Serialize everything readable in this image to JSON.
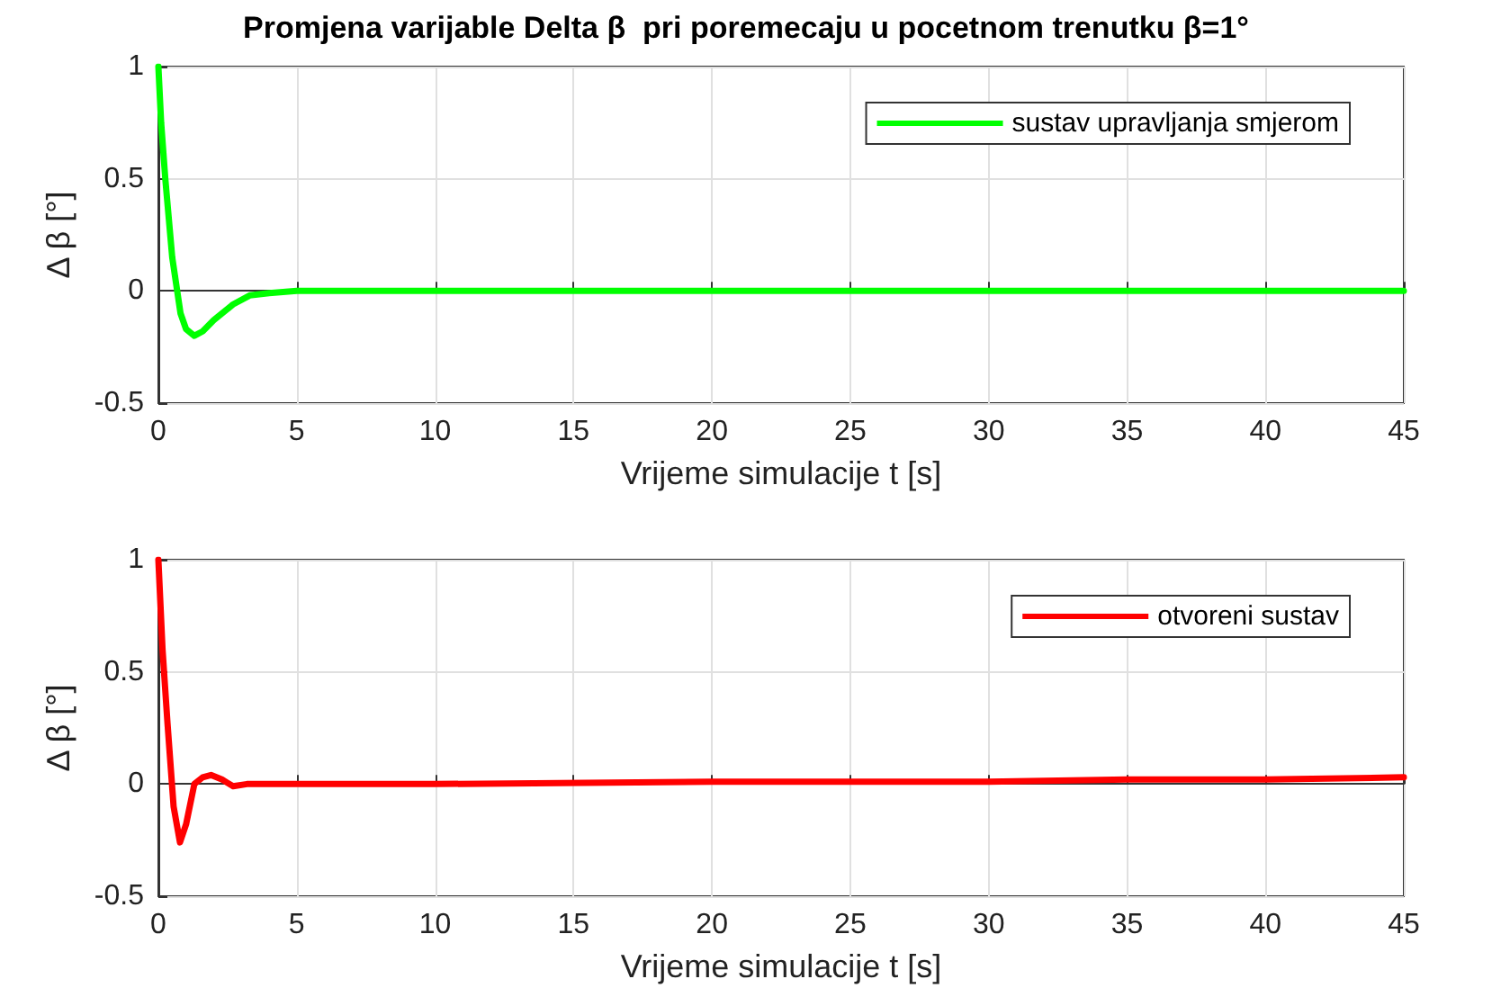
{
  "chart_data": [
    {
      "type": "line",
      "title": "Promjena varijable Delta β  pri poremecaju u pocetnom trenutku β=1°",
      "xlabel": "Vrijeme simulacije t [s]",
      "ylabel": "Δ β [°]",
      "x": [
        0,
        0.1,
        0.25,
        0.5,
        0.8,
        1.0,
        1.3,
        1.6,
        2.0,
        2.7,
        3.3,
        4.0,
        5,
        10,
        20,
        30,
        45
      ],
      "series": [
        {
          "name": "sustav upravljanja smjerom",
          "color": "#00ff00",
          "values": [
            1,
            0.75,
            0.5,
            0.15,
            -0.1,
            -0.17,
            -0.2,
            -0.18,
            -0.13,
            -0.06,
            -0.02,
            -0.01,
            0,
            0,
            0,
            0,
            0
          ]
        }
      ],
      "xlim": [
        0,
        45
      ],
      "xticks": [
        0,
        5,
        10,
        15,
        20,
        25,
        30,
        35,
        40,
        45
      ],
      "ylim": [
        -0.5,
        1
      ],
      "yticks": [
        -0.5,
        0,
        0.5,
        1
      ],
      "grid": true,
      "legend": "top right",
      "marker": "none",
      "line_style": "solid"
    },
    {
      "type": "line",
      "xlabel": "Vrijeme simulacije t [s]",
      "ylabel": "Δ β [°]",
      "x": [
        0,
        0.15,
        0.33,
        0.55,
        0.78,
        1.0,
        1.3,
        1.6,
        1.9,
        2.3,
        2.7,
        3.2,
        5,
        10,
        20,
        25,
        30,
        35,
        40,
        45
      ],
      "series": [
        {
          "name": "otvoreni sustav",
          "color": "#ff0000",
          "values": [
            1,
            0.6,
            0.27,
            -0.1,
            -0.26,
            -0.18,
            0,
            0.03,
            0.04,
            0.02,
            -0.01,
            0,
            0,
            0,
            0.01,
            0.01,
            0.01,
            0.02,
            0.02,
            0.03
          ]
        }
      ],
      "xlim": [
        0,
        45
      ],
      "xticks": [
        0,
        5,
        10,
        15,
        20,
        25,
        30,
        35,
        40,
        45
      ],
      "ylim": [
        -0.5,
        1
      ],
      "yticks": [
        -0.5,
        0,
        0.5,
        1
      ],
      "grid": true,
      "legend": "top right",
      "marker": "none",
      "line_style": "solid"
    }
  ]
}
